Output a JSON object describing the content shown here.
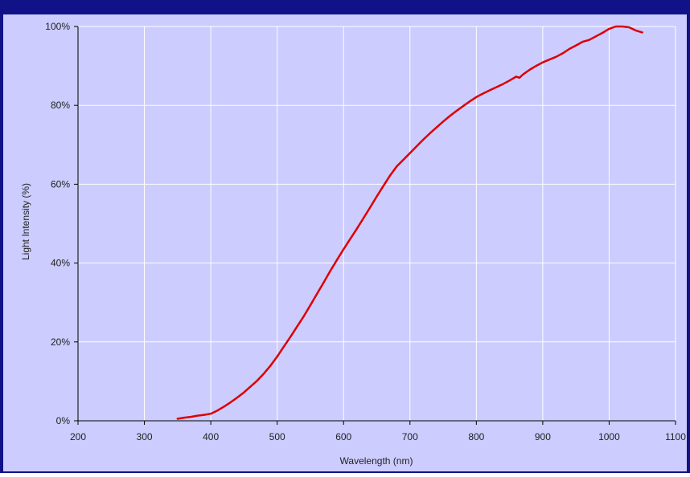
{
  "chart_data": {
    "type": "line",
    "title": "",
    "xlabel": "Wavelength (nm)",
    "ylabel": "Light Intensity (%)",
    "xlim": [
      200,
      1100
    ],
    "ylim": [
      0,
      100
    ],
    "x_ticks": [
      200,
      300,
      400,
      500,
      600,
      700,
      800,
      900,
      1000,
      1100
    ],
    "x_tick_labels": [
      "200",
      "300",
      "400",
      "500",
      "600",
      "700",
      "800",
      "900",
      "1000",
      "1100"
    ],
    "y_ticks": [
      0,
      20,
      40,
      60,
      80,
      100
    ],
    "y_tick_labels": [
      "0%",
      "20%",
      "40%",
      "60%",
      "80%",
      "100%"
    ],
    "grid": true,
    "legend": "none",
    "colors": {
      "frame": "#111188",
      "plot_background": "#ccccff",
      "grid": "#ffffff",
      "series": "#dd0000",
      "axis": "#000000",
      "text": "#222222"
    },
    "series": [
      {
        "x": [
          350,
          360,
          370,
          380,
          390,
          400,
          410,
          420,
          430,
          440,
          450,
          460,
          470,
          480,
          490,
          500,
          510,
          520,
          530,
          540,
          550,
          560,
          570,
          580,
          590,
          600,
          610,
          620,
          630,
          640,
          650,
          660,
          670,
          680,
          690,
          700,
          710,
          720,
          730,
          740,
          750,
          760,
          770,
          780,
          790,
          800,
          810,
          820,
          830,
          840,
          850,
          860,
          865,
          870,
          880,
          890,
          900,
          910,
          920,
          930,
          940,
          950,
          960,
          970,
          980,
          990,
          1000,
          1010,
          1020,
          1030,
          1040,
          1050
        ],
        "y": [
          0.5,
          0.8,
          1.0,
          1.3,
          1.5,
          1.8,
          2.6,
          3.6,
          4.7,
          5.9,
          7.2,
          8.7,
          10.2,
          12.0,
          14.0,
          16.3,
          18.8,
          21.3,
          23.9,
          26.5,
          29.3,
          32.2,
          35.1,
          38.0,
          40.8,
          43.5,
          46.1,
          48.7,
          51.4,
          54.1,
          56.9,
          59.6,
          62.2,
          64.5,
          66.2,
          67.9,
          69.6,
          71.3,
          72.9,
          74.4,
          75.9,
          77.3,
          78.6,
          79.8,
          81.0,
          82.1,
          83.0,
          83.8,
          84.6,
          85.4,
          86.3,
          87.3,
          87.0,
          87.8,
          89.0,
          90.0,
          90.9,
          91.6,
          92.3,
          93.2,
          94.3,
          95.2,
          96.1,
          96.6,
          97.5,
          98.4,
          99.4,
          100.0,
          100.0,
          99.8,
          99.0,
          98.5
        ]
      }
    ]
  }
}
